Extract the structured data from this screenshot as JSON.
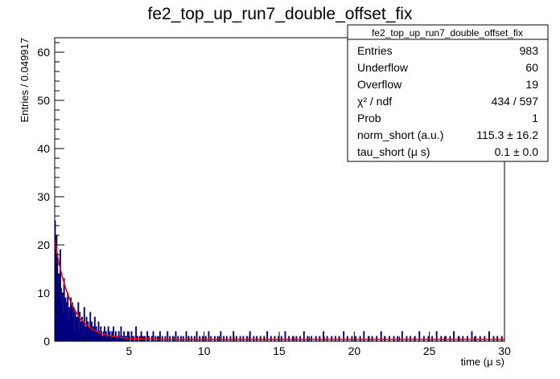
{
  "chart_data": {
    "type": "histogram",
    "title": "fe2_top_up_run7_double_offset_fix",
    "xlabel": "time (μ s)",
    "ylabel": "Entries / 0.049917",
    "xlim": [
      0.05,
      30
    ],
    "ylim": [
      0,
      63
    ],
    "x_ticks": [
      5,
      10,
      15,
      20,
      25,
      30
    ],
    "y_ticks": [
      0,
      10,
      20,
      30,
      40,
      50,
      60
    ],
    "bin_width": 0.049917,
    "histogram_color": "#000080",
    "fit_color": "#ff0000",
    "fit": {
      "function": "exponential_plus_offset",
      "amplitude": 20.6,
      "tau": 1.1,
      "offset": 0.4
    },
    "histogram_values": [
      25,
      16,
      22,
      18,
      12,
      14,
      9,
      19,
      11,
      8,
      10,
      6,
      13,
      7,
      9,
      5,
      8,
      10,
      4,
      7,
      6,
      9,
      3,
      8,
      5,
      7,
      2,
      6,
      4,
      5,
      3,
      8,
      2,
      6,
      4,
      3,
      5,
      1,
      4,
      7,
      2,
      3,
      5,
      2,
      4,
      1,
      3,
      6,
      2,
      4,
      1,
      3,
      2,
      5,
      1,
      3,
      2,
      0,
      4,
      2,
      1,
      3,
      2,
      1,
      0,
      2,
      3,
      1,
      2,
      0,
      1,
      3,
      0,
      2,
      1,
      0,
      2,
      1,
      3,
      0,
      1,
      2,
      0,
      1,
      0,
      2,
      1,
      0,
      3,
      0,
      1,
      0,
      2,
      1,
      0,
      1,
      0,
      2,
      0,
      1,
      0,
      0,
      2,
      1,
      0,
      1,
      0,
      0,
      3,
      0,
      1,
      0,
      0,
      1,
      0,
      2,
      0,
      1,
      0,
      0,
      1,
      0,
      0,
      2,
      0,
      1,
      0,
      0,
      0,
      1,
      0,
      2,
      0,
      0,
      1,
      0,
      0,
      1,
      0,
      0,
      2,
      0,
      0,
      1,
      0,
      0,
      0,
      1,
      0,
      0,
      2,
      0,
      0,
      1,
      0,
      0,
      0,
      1,
      0,
      0,
      0,
      2,
      0,
      0,
      1,
      0,
      0,
      0,
      1,
      0,
      0,
      1,
      0,
      0,
      0,
      2,
      0,
      0,
      1,
      0,
      0,
      0,
      1,
      0,
      0,
      0,
      1,
      0,
      0,
      2,
      0,
      0,
      0,
      1,
      0,
      0,
      0,
      1,
      0,
      0,
      0,
      1,
      0,
      0,
      0,
      2,
      0,
      0,
      1,
      0,
      0,
      0,
      0,
      1,
      0,
      0,
      0,
      1,
      0,
      0,
      0,
      2,
      0,
      0,
      0,
      1,
      0,
      0,
      0,
      1,
      0,
      0,
      0,
      0,
      1,
      0,
      0,
      0,
      2,
      0,
      0,
      0,
      1,
      0,
      0,
      0,
      0,
      1,
      0,
      0,
      0,
      1,
      0,
      0,
      0,
      0,
      1,
      0,
      0,
      0,
      2,
      0,
      0,
      0,
      0,
      1,
      0,
      0,
      0,
      1,
      0,
      0,
      0,
      0,
      1,
      0,
      0,
      0,
      0,
      1,
      0,
      0,
      0,
      2,
      0,
      0,
      0,
      0,
      1,
      0,
      0,
      0,
      0,
      1,
      0,
      0,
      0,
      0,
      1,
      0,
      0,
      0,
      1,
      0,
      0,
      0,
      0,
      2,
      0,
      0,
      0,
      0,
      1,
      0,
      0,
      0,
      0,
      1,
      0,
      0,
      0,
      0,
      1,
      0,
      0,
      0,
      0,
      1,
      0,
      0,
      0,
      0,
      2,
      0,
      0,
      0,
      0,
      1,
      0,
      0,
      0,
      0,
      1,
      0,
      0,
      0,
      0,
      0,
      1,
      0,
      0,
      0,
      0,
      1,
      0,
      0,
      0,
      0,
      2,
      0,
      0,
      0,
      0,
      1,
      0,
      0,
      0,
      0,
      0,
      1,
      0,
      0,
      0,
      0,
      1,
      0,
      0,
      0,
      0,
      1,
      0,
      0,
      0,
      0,
      0,
      2,
      0,
      0,
      0,
      0,
      1,
      0,
      0,
      0,
      0,
      0,
      1,
      0,
      0,
      0,
      0,
      1,
      0,
      0,
      0,
      0,
      0,
      1,
      0,
      0,
      0,
      0,
      2,
      0,
      0,
      0,
      0,
      0,
      1,
      0,
      0,
      0,
      0,
      1,
      0,
      0,
      0,
      0,
      0,
      1,
      0,
      0,
      0,
      0,
      0,
      2,
      0,
      0,
      0,
      0,
      1,
      0,
      0,
      0,
      0,
      0,
      1,
      0,
      0,
      0,
      0,
      0,
      1,
      0,
      0,
      0,
      0,
      1,
      0,
      0,
      0,
      0,
      0,
      2,
      0,
      0,
      0,
      0,
      0,
      1,
      0,
      0,
      0,
      0,
      1,
      0,
      0,
      0,
      0,
      0,
      1,
      0,
      0,
      0,
      0,
      0,
      2,
      0,
      0,
      0,
      0,
      0,
      1,
      0,
      0,
      0,
      0,
      0,
      1,
      0,
      0,
      0,
      0,
      1,
      0,
      0,
      0,
      0,
      0,
      2,
      0,
      0,
      0,
      0,
      0,
      1,
      0,
      0,
      0,
      0,
      0,
      1,
      0,
      0,
      0,
      0,
      0,
      1,
      0,
      0,
      0,
      0,
      2,
      0,
      0,
      0,
      0,
      0,
      1,
      0,
      0,
      0,
      0,
      0,
      1,
      0,
      0,
      0,
      0,
      0,
      1,
      0,
      0,
      0,
      0,
      0,
      2,
      0,
      0,
      0,
      0,
      1,
      0,
      0,
      0,
      0,
      0,
      1,
      0,
      0,
      0,
      0,
      0,
      1,
      0,
      0,
      0,
      0,
      0,
      2,
      0,
      0,
      0,
      0,
      0,
      1,
      0,
      0,
      0,
      0,
      1,
      0,
      0,
      0,
      0,
      0,
      1,
      0,
      0,
      0,
      0,
      0,
      2,
      0,
      0,
      0,
      0,
      0,
      1,
      0,
      0,
      0,
      0,
      0,
      1,
      0,
      0,
      0,
      0,
      1,
      0,
      0,
      0,
      0,
      0,
      2,
      0,
      0,
      0,
      0,
      0,
      1,
      0,
      0,
      0,
      0,
      0,
      1,
      0,
      0,
      0,
      0,
      0,
      1
    ],
    "stats_box": {
      "title": "fe2_top_up_run7_double_offset_fix",
      "rows": [
        {
          "label": "Entries",
          "value": "983"
        },
        {
          "label": "Underflow",
          "value": "60"
        },
        {
          "label": "Overflow",
          "value": "19"
        },
        {
          "label": "χ² / ndf",
          "value": "434 / 597"
        },
        {
          "label": "Prob",
          "value": "1"
        },
        {
          "label": "norm_short (a.u.)",
          "value": "115.3 ± 16.2"
        },
        {
          "label": "tau_short (μ s)",
          "value": "0.1 ± 0.0"
        }
      ]
    },
    "grid": false,
    "legend": "top-right"
  }
}
